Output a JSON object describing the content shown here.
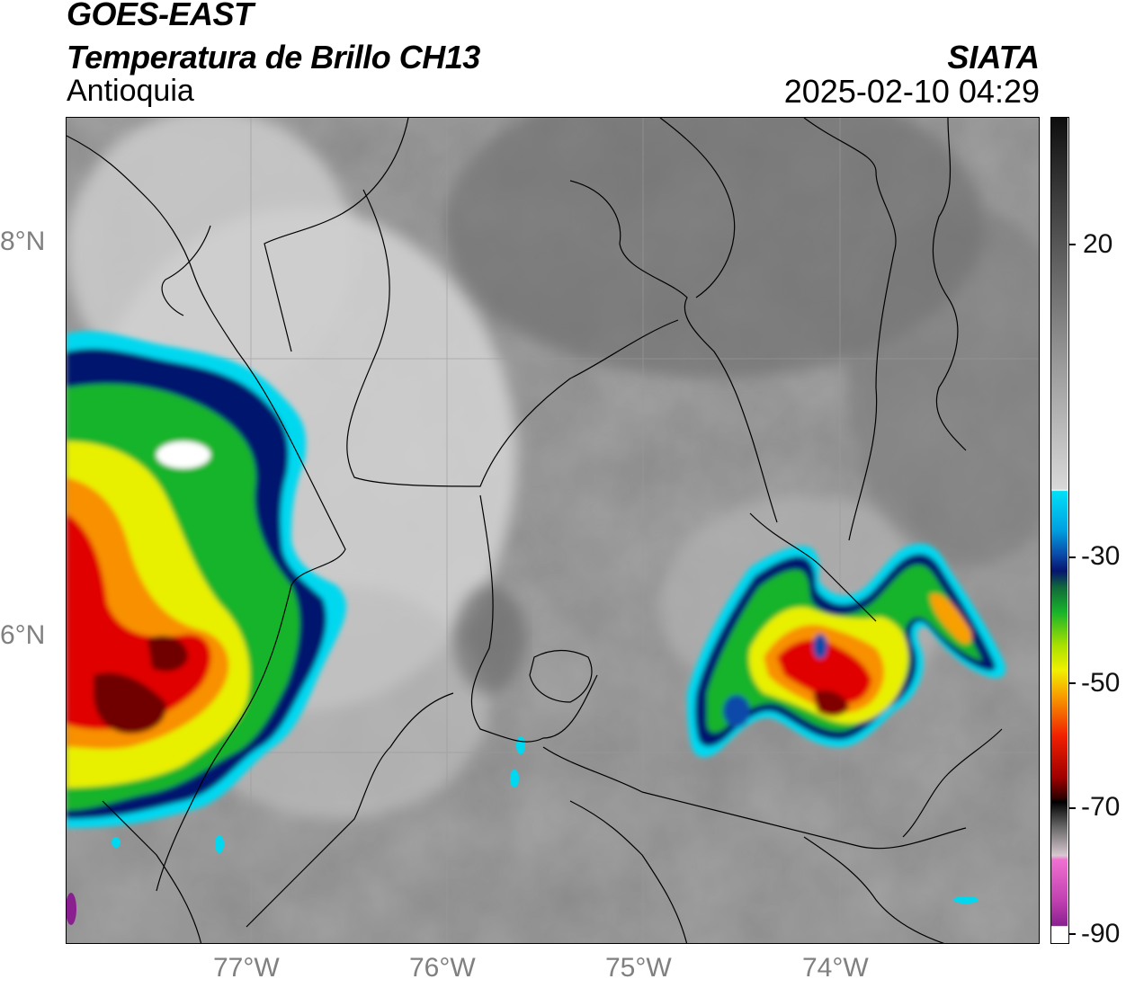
{
  "header": {
    "satellite": "GOES-EAST",
    "product": "Temperatura de Brillo CH13",
    "region": "Antioquia",
    "brand": "SIATA",
    "datetime": "2025-02-10 04:29"
  },
  "map": {
    "lat_labels": [
      "8°N",
      "6°N"
    ],
    "lon_labels": [
      "77°W",
      "76°W",
      "75°W",
      "74°W"
    ],
    "gridlines": true
  },
  "colorbar": {
    "ticks": [
      "20",
      "-30",
      "-50",
      "-70",
      "-90"
    ],
    "colors": {
      "warm_gray_dark": "#1e1e1e",
      "gray_mid": "#8c8c8c",
      "near_white": "#f2f2f2",
      "cyan": "#00d8f0",
      "blue": "#0a4aa8",
      "navy": "#06146e",
      "green": "#18b42a",
      "yellow": "#e8f000",
      "orange": "#f8a000",
      "red": "#e00000",
      "dark_red": "#600000",
      "black": "#000000",
      "pink": "#e060c0",
      "purple": "#8a2090"
    }
  }
}
